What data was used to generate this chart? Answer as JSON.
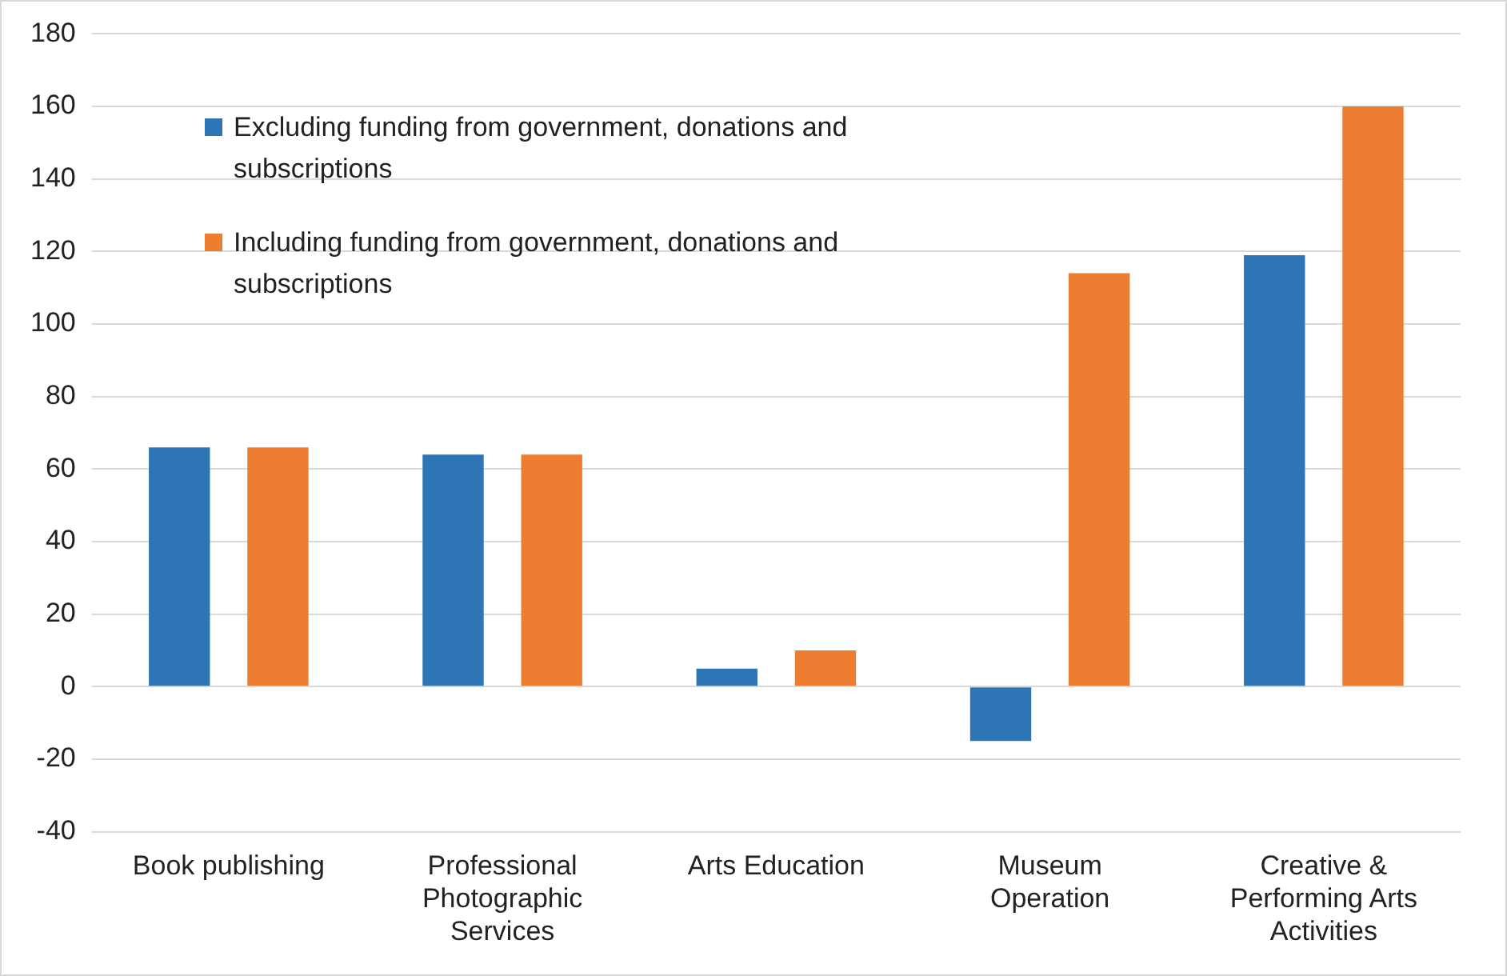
{
  "chart_data": {
    "type": "bar",
    "categories": [
      "Book publishing",
      "Professional Photographic Services",
      "Arts Education",
      "Museum Operation",
      "Creative & Performing Arts Activities"
    ],
    "series": [
      {
        "name": "Excluding funding from government, donations and subscriptions",
        "color": "#2e75b6",
        "values": [
          66,
          64,
          5,
          -15,
          119
        ]
      },
      {
        "name": "Including funding from government, donations and subscriptions",
        "color": "#ed7d31",
        "values": [
          66,
          64,
          10,
          114,
          160
        ]
      }
    ],
    "ylim": [
      -40,
      180
    ],
    "yticks": [
      -40,
      -20,
      0,
      20,
      40,
      60,
      80,
      100,
      120,
      140,
      160,
      180
    ],
    "grid": "y",
    "legend": "top left"
  }
}
